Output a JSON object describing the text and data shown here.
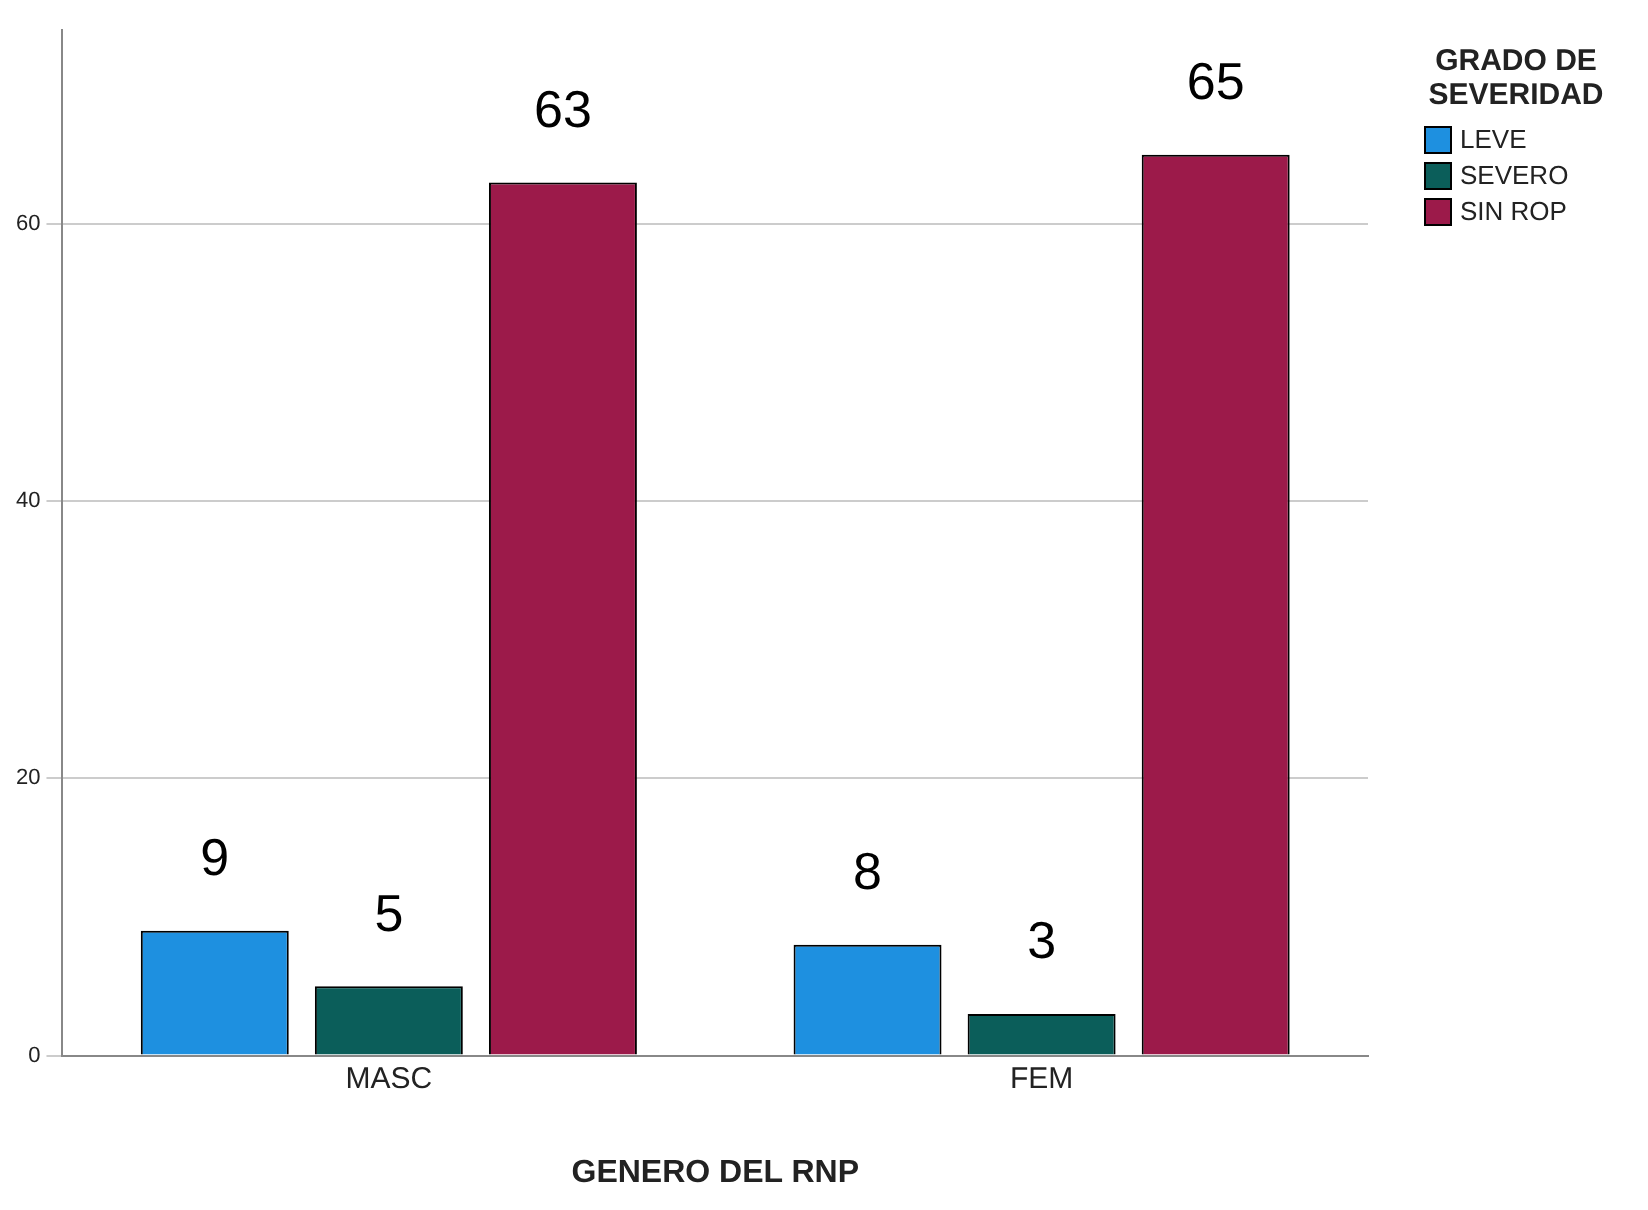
{
  "chart_data": {
    "type": "bar",
    "xlabel": "GENERO DEL RNP",
    "legend_title": "GRADO DE SEVERIDAD",
    "categories": [
      "MASC",
      "FEM"
    ],
    "series": [
      {
        "name": "LEVE",
        "color": "#1e90e0",
        "values": [
          9,
          8
        ]
      },
      {
        "name": "SEVERO",
        "color": "#0b5e5a",
        "values": [
          5,
          3
        ]
      },
      {
        "name": "SIN ROP",
        "color": "#9c1a4a",
        "values": [
          63,
          65
        ]
      }
    ],
    "ylim": [
      0,
      74
    ],
    "yticks": [
      0,
      20,
      40,
      60
    ],
    "grid": "y",
    "legend": "top right",
    "data_labels": true
  }
}
